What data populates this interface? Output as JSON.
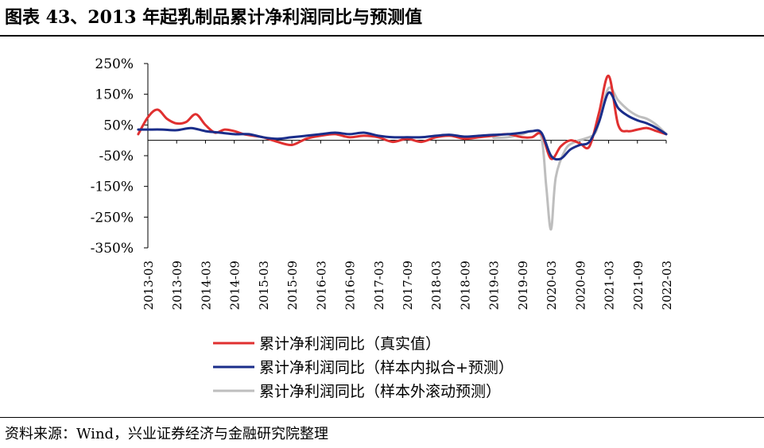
{
  "title": "图表 43、2013 年起乳制品累计净利润同比与预测值",
  "source": "资料来源：Wind，兴业证券经济与金融研究院整理",
  "chart_data": {
    "type": "line",
    "y_ticks": [
      "250%",
      "150%",
      "50%",
      "-50%",
      "-150%",
      "-250%",
      "-350%"
    ],
    "y_tick_values": [
      250,
      150,
      50,
      -50,
      -150,
      -250,
      -350
    ],
    "ylim": [
      -350,
      250
    ],
    "x_ticks": [
      "2013-03",
      "2013-09",
      "2014-03",
      "2014-09",
      "2015-03",
      "2015-09",
      "2016-03",
      "2016-09",
      "2017-03",
      "2017-09",
      "2018-03",
      "2018-09",
      "2019-03",
      "2019-09",
      "2020-03",
      "2020-09",
      "2021-03",
      "2021-09",
      "2022-03"
    ],
    "grid": false,
    "legend_position": "bottom",
    "series": [
      {
        "name": "累计净利润同比（真实值）",
        "color": "#e03030",
        "x": [
          "2013-01",
          "2013-03",
          "2013-05",
          "2013-07",
          "2013-09",
          "2013-11",
          "2014-01",
          "2014-03",
          "2014-05",
          "2014-07",
          "2014-09",
          "2014-11",
          "2015-01",
          "2015-03",
          "2015-06",
          "2015-09",
          "2015-12",
          "2016-03",
          "2016-06",
          "2016-09",
          "2016-12",
          "2017-03",
          "2017-06",
          "2017-09",
          "2017-12",
          "2018-03",
          "2018-06",
          "2018-09",
          "2018-12",
          "2019-03",
          "2019-06",
          "2019-09",
          "2019-11",
          "2020-01",
          "2020-03",
          "2020-05",
          "2020-07",
          "2020-09",
          "2020-11",
          "2021-01",
          "2021-03",
          "2021-05",
          "2021-07",
          "2021-09",
          "2021-11",
          "2022-01",
          "2022-03"
        ],
        "values": [
          20,
          75,
          100,
          70,
          55,
          60,
          85,
          50,
          25,
          35,
          30,
          20,
          15,
          10,
          -5,
          -15,
          5,
          15,
          20,
          10,
          15,
          10,
          -5,
          5,
          -5,
          10,
          15,
          5,
          10,
          15,
          20,
          10,
          10,
          20,
          -60,
          -20,
          0,
          -10,
          -20,
          90,
          210,
          50,
          30,
          35,
          40,
          30,
          20
        ]
      },
      {
        "name": "累计净利润同比（样本内拟合+预测）",
        "color": "#1a2d8a",
        "x": [
          "2013-01",
          "2013-03",
          "2013-06",
          "2013-09",
          "2013-12",
          "2014-03",
          "2014-06",
          "2014-09",
          "2014-12",
          "2015-03",
          "2015-06",
          "2015-09",
          "2015-12",
          "2016-03",
          "2016-06",
          "2016-09",
          "2016-12",
          "2017-03",
          "2017-06",
          "2017-09",
          "2017-12",
          "2018-03",
          "2018-06",
          "2018-09",
          "2018-12",
          "2019-03",
          "2019-06",
          "2019-09",
          "2019-11",
          "2020-01",
          "2020-03",
          "2020-05",
          "2020-07",
          "2020-09",
          "2020-11",
          "2021-01",
          "2021-03",
          "2021-05",
          "2021-07",
          "2021-09",
          "2021-11",
          "2022-01",
          "2022-03"
        ],
        "values": [
          35,
          35,
          35,
          33,
          40,
          30,
          25,
          20,
          20,
          10,
          5,
          10,
          15,
          20,
          25,
          20,
          25,
          15,
          10,
          10,
          10,
          15,
          18,
          12,
          15,
          18,
          20,
          25,
          30,
          25,
          -50,
          -60,
          -30,
          -15,
          -5,
          60,
          155,
          105,
          80,
          65,
          55,
          40,
          20
        ]
      },
      {
        "name": "累计净利润同比（样本外滚动预测）",
        "color": "#bebebe",
        "x": [
          "2019-03",
          "2019-06",
          "2019-09",
          "2019-11",
          "2020-01",
          "2020-02",
          "2020-03",
          "2020-04",
          "2020-06",
          "2020-08",
          "2020-10",
          "2020-12",
          "2021-01",
          "2021-03",
          "2021-05",
          "2021-07",
          "2021-09",
          "2021-11",
          "2022-01",
          "2022-03"
        ],
        "values": [
          8,
          10,
          20,
          30,
          10,
          -150,
          -290,
          -120,
          -30,
          -5,
          5,
          20,
          60,
          170,
          130,
          100,
          80,
          70,
          50,
          20
        ]
      }
    ]
  }
}
